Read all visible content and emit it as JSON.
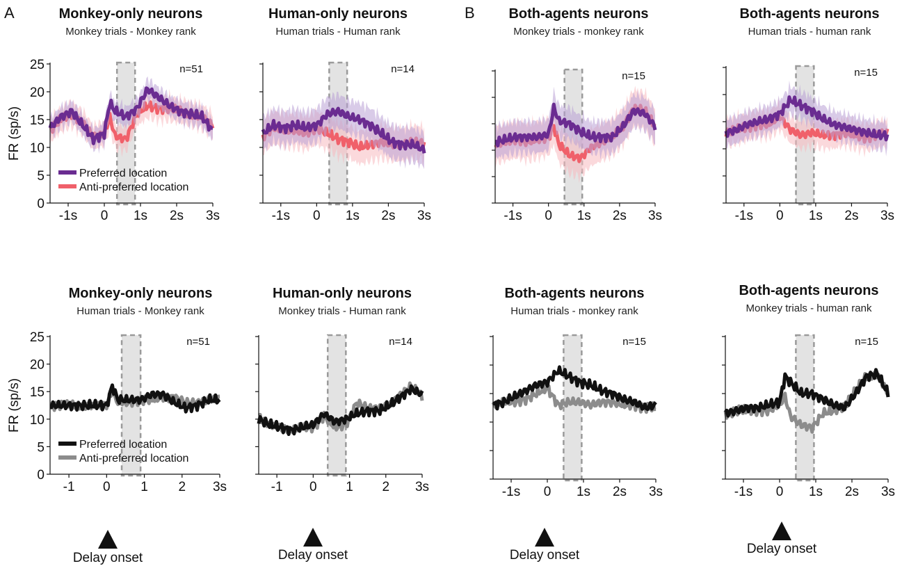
{
  "figure": {
    "panel_letters": [
      "A",
      "B"
    ],
    "onset_label": "Delay onset",
    "ylabel": "FR (sp/s)"
  },
  "colors": {
    "preferred_color": "#6a2c91",
    "preferred_band": "#b9a0d6",
    "anti_color": "#f0606a",
    "anti_band": "#f7b9bf",
    "black": "#111111",
    "grey": "#8c8c8c",
    "delay_band": "#d9d9d9",
    "delay_border": "#9a9a9a"
  },
  "chart_data": [
    {
      "type": "line",
      "title": "Monkey-only neurons",
      "subtitle": "Monkey trials - Monkey rank",
      "n_label": "n=51",
      "ylabel": "FR (sp/s)",
      "ylim": [
        0,
        25
      ],
      "yticks": [
        "0",
        "5",
        "10",
        "15",
        "20",
        "25"
      ],
      "xlim": [
        -1.5,
        3
      ],
      "xticks": [
        -1,
        0,
        1,
        2,
        3
      ],
      "xticklabels": [
        "-1s",
        "0",
        "1s",
        "2s",
        "3s"
      ],
      "delay_window": [
        0.35,
        0.85
      ],
      "legend": [
        "Preferred location",
        "Anti-preferred location"
      ],
      "style": "color",
      "x": [
        -1.5,
        -1.2,
        -0.9,
        -0.6,
        -0.3,
        0.0,
        0.15,
        0.3,
        0.6,
        0.9,
        1.2,
        1.5,
        1.8,
        2.1,
        2.4,
        2.7,
        3.0
      ],
      "series": [
        {
          "name": "Preferred location",
          "values": [
            13.5,
            15.5,
            16.5,
            14.0,
            11.5,
            12.5,
            18.0,
            16.5,
            15.5,
            17.0,
            20.5,
            19.0,
            17.5,
            16.5,
            16.0,
            15.5,
            13.0
          ],
          "band": 1.8
        },
        {
          "name": "Anti-preferred location",
          "values": [
            13.0,
            15.0,
            16.0,
            14.5,
            11.8,
            12.5,
            15.5,
            12.0,
            11.5,
            16.0,
            17.5,
            17.0,
            17.0,
            16.5,
            16.0,
            15.5,
            14.0
          ],
          "band": 2.2
        }
      ]
    },
    {
      "type": "line",
      "title": "Human-only neurons",
      "subtitle": "Human trials - Human rank",
      "n_label": "n=14",
      "ylim": [
        0,
        25
      ],
      "xlim": [
        -1.5,
        3
      ],
      "xticks": [
        -1,
        0,
        1,
        2,
        3
      ],
      "xticklabels": [
        "-1s",
        "0",
        "1s",
        "2s",
        "3s"
      ],
      "delay_window": [
        0.35,
        0.85
      ],
      "style": "color",
      "x": [
        -1.5,
        -1.2,
        -0.9,
        -0.6,
        -0.3,
        0.0,
        0.3,
        0.6,
        0.9,
        1.2,
        1.5,
        1.8,
        2.1,
        2.4,
        2.7,
        3.0
      ],
      "series": [
        {
          "name": "Preferred location",
          "values": [
            12.5,
            14.0,
            13.5,
            14.0,
            13.5,
            14.0,
            16.0,
            16.5,
            15.5,
            15.0,
            14.0,
            12.5,
            11.0,
            10.5,
            10.5,
            9.5
          ],
          "band": 3.0
        },
        {
          "name": "Anti-preferred location",
          "values": [
            12.0,
            13.5,
            13.0,
            13.0,
            12.5,
            13.5,
            12.5,
            11.5,
            11.0,
            10.0,
            10.5,
            11.0,
            10.5,
            10.5,
            11.0,
            10.8
          ],
          "band": 3.0
        }
      ]
    },
    {
      "type": "line",
      "title": "Both-agents neurons",
      "subtitle": "Monkey trials - monkey rank",
      "n_label": "n=15",
      "ylim": [
        0,
        25
      ],
      "xlim": [
        -1.5,
        3
      ],
      "xticks": [
        -1,
        0,
        1,
        2,
        3
      ],
      "xticklabels": [
        "-1s",
        "0",
        "1s",
        "2s",
        "3s"
      ],
      "delay_window": [
        0.45,
        0.95
      ],
      "style": "color",
      "x": [
        -1.5,
        -1.2,
        -0.9,
        -0.6,
        -0.3,
        0.0,
        0.15,
        0.3,
        0.6,
        0.9,
        1.2,
        1.5,
        1.8,
        2.1,
        2.4,
        2.7,
        3.0
      ],
      "series": [
        {
          "name": "Preferred location",
          "values": [
            11.5,
            12.0,
            12.5,
            12.5,
            12.5,
            13.0,
            18.0,
            15.5,
            15.0,
            13.5,
            12.5,
            12.5,
            12.5,
            14.5,
            17.5,
            17.0,
            14.5
          ],
          "band": 3.0
        },
        {
          "name": "Anti-preferred location",
          "values": [
            11.0,
            11.5,
            12.0,
            11.5,
            12.0,
            12.5,
            14.5,
            11.0,
            9.0,
            8.5,
            10.5,
            11.5,
            12.5,
            14.5,
            18.0,
            17.5,
            14.5
          ],
          "band": 3.5
        }
      ]
    },
    {
      "type": "line",
      "title": "Both-agents neurons",
      "subtitle": "Human trials - human rank",
      "n_label": "n=15",
      "ylim": [
        0,
        25
      ],
      "xlim": [
        -1.5,
        3
      ],
      "xticks": [
        -1,
        0,
        1,
        2,
        3
      ],
      "xticklabels": [
        "-1s",
        "0",
        "1s",
        "2s",
        "3s"
      ],
      "delay_window": [
        0.45,
        0.95
      ],
      "style": "color",
      "x": [
        -1.5,
        -1.2,
        -0.9,
        -0.6,
        -0.3,
        0.0,
        0.3,
        0.6,
        0.9,
        1.2,
        1.5,
        1.8,
        2.1,
        2.4,
        2.7,
        3.0
      ],
      "series": [
        {
          "name": "Preferred location",
          "values": [
            13.0,
            13.5,
            14.5,
            15.0,
            15.5,
            16.5,
            19.0,
            18.0,
            17.0,
            15.5,
            14.5,
            14.0,
            13.5,
            13.0,
            12.5,
            12.5
          ],
          "band": 2.5
        },
        {
          "name": "Anti-preferred location",
          "values": [
            13.0,
            13.5,
            14.0,
            14.5,
            14.5,
            16.0,
            13.5,
            12.5,
            13.0,
            12.5,
            12.5,
            13.0,
            12.5,
            12.0,
            12.5,
            13.0
          ],
          "band": 2.5
        }
      ]
    },
    {
      "type": "line",
      "title": "Monkey-only neurons",
      "subtitle": "Human trials - Monkey rank",
      "n_label": "n=51",
      "ylabel": "FR (sp/s)",
      "ylim": [
        0,
        25
      ],
      "yticks": [
        "0",
        "5",
        "10",
        "15",
        "20",
        "25"
      ],
      "xlim": [
        -1.5,
        3
      ],
      "xticks": [
        -1,
        0,
        1,
        2,
        3
      ],
      "xticklabels": [
        "-1",
        "0",
        "1",
        "2",
        "3s"
      ],
      "delay_window": [
        0.4,
        0.9
      ],
      "legend": [
        "Preferred location",
        "Anti-preferred location"
      ],
      "style": "mono",
      "x": [
        -1.5,
        -1.2,
        -0.9,
        -0.6,
        -0.3,
        0.0,
        0.15,
        0.3,
        0.6,
        0.9,
        1.2,
        1.5,
        1.8,
        2.1,
        2.4,
        2.7,
        3.0
      ],
      "series": [
        {
          "name": "Preferred location",
          "values": [
            12.5,
            12.5,
            12.5,
            12.5,
            12.5,
            12.5,
            16.0,
            13.5,
            13.5,
            13.5,
            14.5,
            14.5,
            13.0,
            12.0,
            12.5,
            13.5,
            13.5
          ]
        },
        {
          "name": "Anti-preferred location",
          "values": [
            12.5,
            12.5,
            12.5,
            12.5,
            12.5,
            12.5,
            15.0,
            13.0,
            13.0,
            13.5,
            13.5,
            14.0,
            14.0,
            13.0,
            13.0,
            13.5,
            13.8
          ]
        }
      ]
    },
    {
      "type": "line",
      "title": "Human-only neurons",
      "subtitle": "Monkey trials - Human rank",
      "n_label": "n=14",
      "ylim": [
        0,
        25
      ],
      "xlim": [
        -1.5,
        3
      ],
      "xticks": [
        -1,
        0,
        1,
        2,
        3
      ],
      "xticklabels": [
        "-1",
        "0",
        "1",
        "2",
        "3s"
      ],
      "delay_window": [
        0.4,
        0.9
      ],
      "style": "mono",
      "x": [
        -1.5,
        -1.2,
        -0.9,
        -0.6,
        -0.3,
        0.0,
        0.3,
        0.6,
        0.9,
        1.2,
        1.5,
        1.8,
        2.1,
        2.4,
        2.7,
        3.0
      ],
      "series": [
        {
          "name": "Preferred location",
          "values": [
            10.0,
            9.0,
            8.5,
            8.0,
            8.5,
            9.0,
            11.0,
            9.5,
            10.0,
            11.0,
            11.5,
            11.5,
            12.5,
            14.0,
            15.5,
            14.5
          ]
        },
        {
          "name": "Anti-preferred location",
          "values": [
            10.5,
            9.0,
            8.5,
            8.0,
            8.5,
            8.5,
            10.5,
            8.5,
            9.0,
            13.0,
            12.0,
            12.0,
            12.5,
            14.5,
            16.0,
            14.0
          ]
        }
      ]
    },
    {
      "type": "line",
      "title": "Both-agents neurons",
      "subtitle": "Human trials - monkey rank",
      "n_label": "n=15",
      "ylim": [
        0,
        25
      ],
      "xlim": [
        -1.5,
        3
      ],
      "xticks": [
        -1,
        0,
        1,
        2,
        3
      ],
      "xticklabels": [
        "-1s",
        "0",
        "1s",
        "2s",
        "3s"
      ],
      "delay_window": [
        0.45,
        0.95
      ],
      "style": "mono",
      "x": [
        -1.5,
        -1.2,
        -0.9,
        -0.6,
        -0.3,
        0.0,
        0.3,
        0.6,
        0.9,
        1.2,
        1.5,
        1.8,
        2.1,
        2.4,
        2.7,
        3.0
      ],
      "series": [
        {
          "name": "Preferred location",
          "values": [
            13.0,
            13.5,
            14.5,
            15.5,
            16.5,
            17.0,
            19.0,
            18.0,
            17.0,
            16.5,
            15.5,
            15.0,
            14.0,
            13.5,
            12.5,
            13.0
          ]
        },
        {
          "name": "Anti-preferred location",
          "values": [
            13.0,
            13.5,
            13.5,
            14.0,
            15.0,
            16.0,
            13.0,
            13.5,
            13.5,
            13.0,
            13.5,
            13.5,
            13.0,
            13.0,
            12.5,
            12.5
          ]
        }
      ]
    },
    {
      "type": "line",
      "title": "Both-agents neurons",
      "subtitle": "Monkey trials - human rank",
      "n_label": "n=15",
      "ylim": [
        0,
        25
      ],
      "xlim": [
        -1.5,
        3
      ],
      "xticks": [
        -1,
        0,
        1,
        2,
        3
      ],
      "xticklabels": [
        "-1s",
        "0",
        "1s",
        "2s",
        "3s"
      ],
      "delay_window": [
        0.45,
        0.95
      ],
      "style": "mono",
      "x": [
        -1.5,
        -1.2,
        -0.9,
        -0.6,
        -0.3,
        0.0,
        0.15,
        0.3,
        0.6,
        0.9,
        1.2,
        1.5,
        1.8,
        2.1,
        2.4,
        2.7,
        3.0
      ],
      "series": [
        {
          "name": "Preferred location",
          "values": [
            11.5,
            12.0,
            12.5,
            12.5,
            13.0,
            13.5,
            18.0,
            17.0,
            15.0,
            15.0,
            14.0,
            13.0,
            12.5,
            15.0,
            18.0,
            18.5,
            15.0
          ]
        },
        {
          "name": "Anti-preferred location",
          "values": [
            11.5,
            12.0,
            12.0,
            12.0,
            12.0,
            13.0,
            14.5,
            11.0,
            9.5,
            9.0,
            11.5,
            12.0,
            13.0,
            15.5,
            18.0,
            18.5,
            15.0
          ]
        }
      ]
    }
  ]
}
